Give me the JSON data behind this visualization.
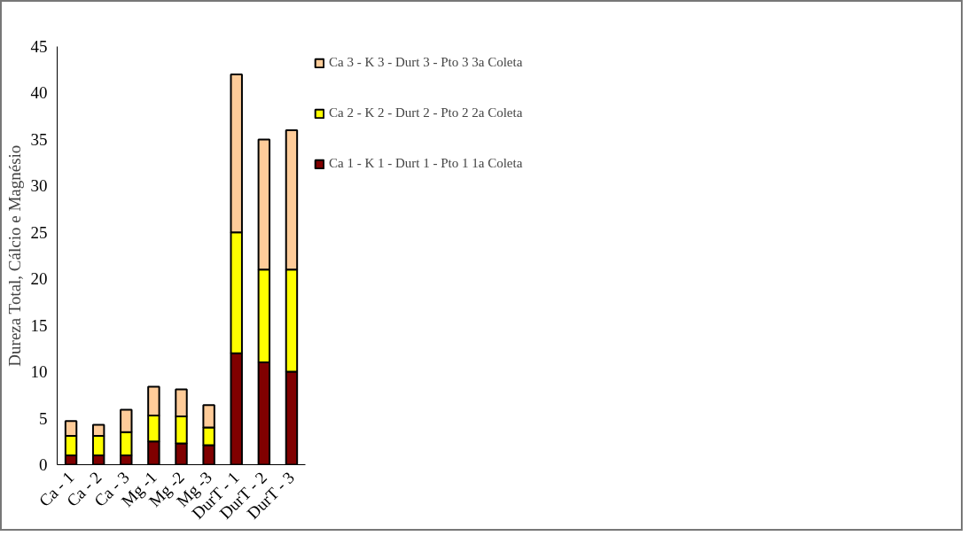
{
  "chart_data": {
    "type": "bar",
    "stacked": true,
    "ylabel": "Dureza Total, Cálcio e Magnésio",
    "categories": [
      "Ca - 1",
      "Ca - 2",
      "Ca - 3",
      "Mg -1",
      "Mg -2",
      "Mg -3",
      "DurT - 1",
      "DurT - 2",
      "DurT - 3"
    ],
    "series": [
      {
        "name": "Ca 1 - K 1 - Durt 1 - Pto 1 1a Coleta",
        "color": "#800000",
        "values": [
          1,
          1,
          1,
          2.5,
          2.3,
          2.1,
          12,
          11,
          10
        ]
      },
      {
        "name": "Ca 2 - K 2 - Durt 2 - Pto 2 2a Coleta",
        "color": "#ffff00",
        "values": [
          2.1,
          2.1,
          2.5,
          2.8,
          2.9,
          1.9,
          13,
          10,
          11
        ]
      },
      {
        "name": "Ca 3 - K 3 - Durt 3 - Pto 3 3a Coleta",
        "color": "#ffcc99",
        "values": [
          1.6,
          1.2,
          2.4,
          3.1,
          2.9,
          2.4,
          17,
          14,
          15
        ]
      }
    ],
    "ylim": [
      0,
      45
    ],
    "yticks": [
      0,
      5,
      10,
      15,
      20,
      25,
      30,
      35,
      40,
      45
    ],
    "grid": false,
    "legend": "right"
  }
}
